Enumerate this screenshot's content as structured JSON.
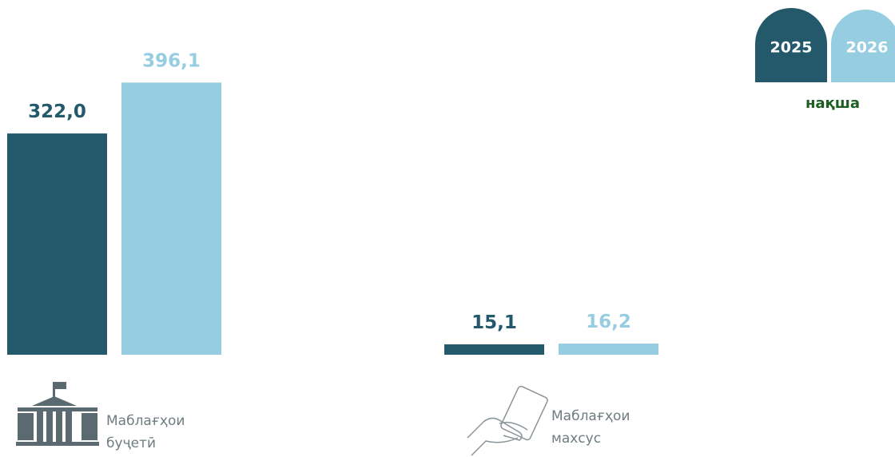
{
  "chart_data": {
    "type": "bar",
    "categories": [
      "Маблағҳои буҷетӣ",
      "Маблағҳои махсус"
    ],
    "series": [
      {
        "name": "2025",
        "color": "#23596a",
        "values": [
          322.0,
          15.1
        ],
        "value_labels": [
          "322,0",
          "15,1"
        ]
      },
      {
        "name": "2026",
        "color": "#97cde0",
        "values": [
          396.1,
          16.2
        ],
        "value_labels": [
          "396,1",
          "16,2"
        ]
      }
    ],
    "legend_note": "нақша",
    "ylim": [
      0,
      400
    ]
  }
}
